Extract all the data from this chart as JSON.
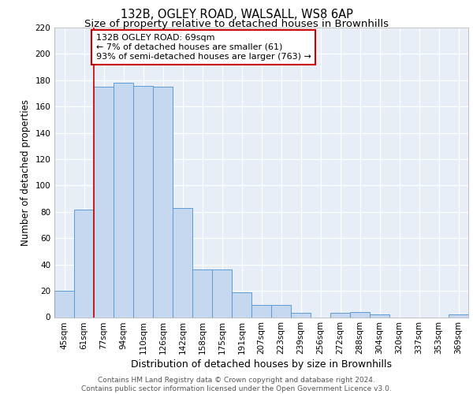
{
  "title1": "132B, OGLEY ROAD, WALSALL, WS8 6AP",
  "title2": "Size of property relative to detached houses in Brownhills",
  "xlabel": "Distribution of detached houses by size in Brownhills",
  "ylabel": "Number of detached properties",
  "categories": [
    "45sqm",
    "61sqm",
    "77sqm",
    "94sqm",
    "110sqm",
    "126sqm",
    "142sqm",
    "158sqm",
    "175sqm",
    "191sqm",
    "207sqm",
    "223sqm",
    "239sqm",
    "256sqm",
    "272sqm",
    "288sqm",
    "304sqm",
    "320sqm",
    "337sqm",
    "353sqm",
    "369sqm"
  ],
  "values": [
    20,
    82,
    175,
    178,
    176,
    175,
    83,
    36,
    36,
    19,
    9,
    9,
    3,
    0,
    3,
    4,
    2,
    0,
    0,
    0,
    2
  ],
  "bar_color": "#c5d8f0",
  "bar_edge_color": "#5b9bd5",
  "vline_x": 1.5,
  "vline_color": "#cc0000",
  "annotation_text": "132B OGLEY ROAD: 69sqm\n← 7% of detached houses are smaller (61)\n93% of semi-detached houses are larger (763) →",
  "annotation_box_color": "#ffffff",
  "annotation_box_edge": "#cc0000",
  "ylim": [
    0,
    220
  ],
  "yticks": [
    0,
    20,
    40,
    60,
    80,
    100,
    120,
    140,
    160,
    180,
    200,
    220
  ],
  "bg_color": "#ffffff",
  "plot_bg": "#e8eef8",
  "grid_color": "#ffffff",
  "footer_text": "Contains HM Land Registry data © Crown copyright and database right 2024.\nContains public sector information licensed under the Open Government Licence v3.0.",
  "title1_fontsize": 10.5,
  "title2_fontsize": 9.5,
  "xlabel_fontsize": 9,
  "ylabel_fontsize": 8.5,
  "tick_fontsize": 7.5,
  "annotation_fontsize": 8,
  "footer_fontsize": 6.5
}
